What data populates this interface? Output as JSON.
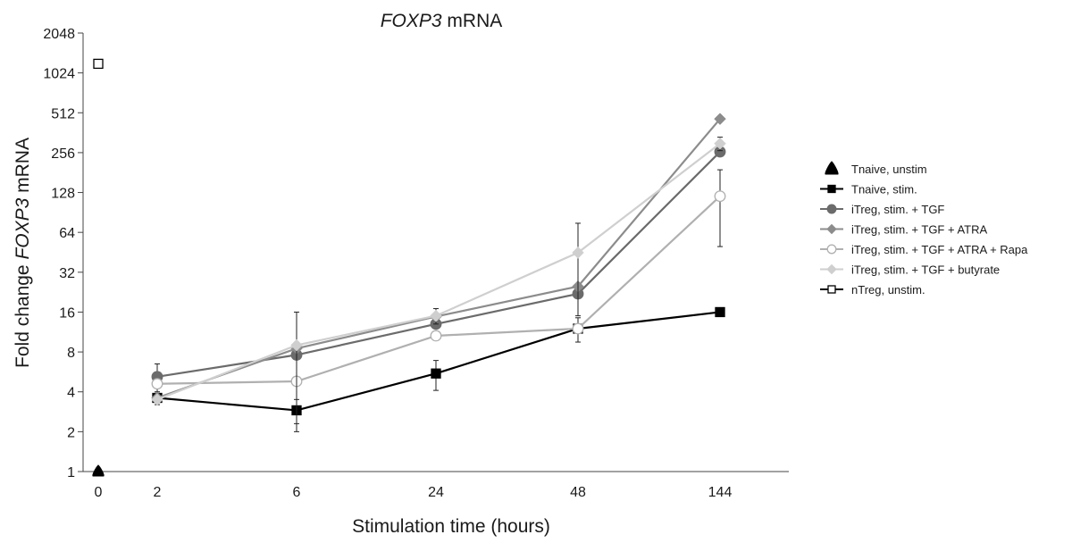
{
  "chart_data": {
    "type": "line",
    "title_italic": "FOXP3",
    "title_rest": " mRNA",
    "xlabel": "Stimulation time (hours)",
    "ylabel_before": "Fold change ",
    "ylabel_italic": "FOXP3",
    "ylabel_after": " mRNA",
    "y_scale": "log2",
    "ylim": [
      1,
      2048
    ],
    "y_ticks": [
      1,
      2,
      4,
      8,
      16,
      32,
      64,
      128,
      256,
      512,
      1024,
      2048
    ],
    "categories": [
      "0",
      "2",
      "6",
      "24",
      "48",
      "144"
    ],
    "series": [
      {
        "name": "Tnaive, unstim",
        "marker": "triangle",
        "color": "#000000",
        "fill": "#000000",
        "points": [
          {
            "cat": 0,
            "y": 1.0
          }
        ]
      },
      {
        "name": "Tnaive, stim.",
        "marker": "square",
        "color": "#000000",
        "fill": "#000000",
        "points": [
          {
            "cat": 1,
            "y": 3.6,
            "err": 0.4
          },
          {
            "cat": 2,
            "y": 2.9,
            "err": 0.6
          },
          {
            "cat": 3,
            "y": 5.5,
            "err": 1.4
          },
          {
            "cat": 4,
            "y": 12.0,
            "err": 2.5
          },
          {
            "cat": 5,
            "y": 16.0
          }
        ]
      },
      {
        "name": "iTreg, stim. + TGF",
        "marker": "circle",
        "color": "#6b6b6b",
        "fill": "#6b6b6b",
        "points": [
          {
            "cat": 1,
            "y": 5.2,
            "err": 1.3
          },
          {
            "cat": 2,
            "y": 7.6
          },
          {
            "cat": 3,
            "y": 13.0
          },
          {
            "cat": 4,
            "y": 22.0
          },
          {
            "cat": 5,
            "y": 260.0
          }
        ]
      },
      {
        "name": "iTreg, stim. + TGF + ATRA",
        "marker": "diamond",
        "color": "#8c8c8c",
        "fill": "#8c8c8c",
        "points": [
          {
            "cat": 1,
            "y": 3.6
          },
          {
            "cat": 2,
            "y": 8.5
          },
          {
            "cat": 3,
            "y": 14.8
          },
          {
            "cat": 4,
            "y": 25.0
          },
          {
            "cat": 5,
            "y": 460.0
          }
        ]
      },
      {
        "name": "iTreg, stim. + TGF + ATRA + Rapa",
        "marker": "circle",
        "color": "#b0b0b0",
        "fill": "#ffffff",
        "points": [
          {
            "cat": 1,
            "y": 4.6
          },
          {
            "cat": 2,
            "y": 4.8
          },
          {
            "cat": 3,
            "y": 10.6
          },
          {
            "cat": 4,
            "y": 12.0
          },
          {
            "cat": 5,
            "y": 120.0,
            "err": 70
          }
        ]
      },
      {
        "name": "iTreg, stim. + TGF + butyrate",
        "marker": "diamond",
        "color": "#cfcfcf",
        "fill": "#cfcfcf",
        "points": [
          {
            "cat": 1,
            "y": 3.5
          },
          {
            "cat": 2,
            "y": 9.0,
            "err": 7
          },
          {
            "cat": 3,
            "y": 15.0,
            "err": 2
          },
          {
            "cat": 4,
            "y": 45.0,
            "err": 30
          },
          {
            "cat": 5,
            "y": 300.0,
            "err": 35
          }
        ]
      },
      {
        "name": "nTreg, unstim.",
        "marker": "square",
        "color": "#000000",
        "fill": "#ffffff",
        "points": [
          {
            "cat": 0,
            "y": 1200.0
          }
        ]
      }
    ]
  }
}
